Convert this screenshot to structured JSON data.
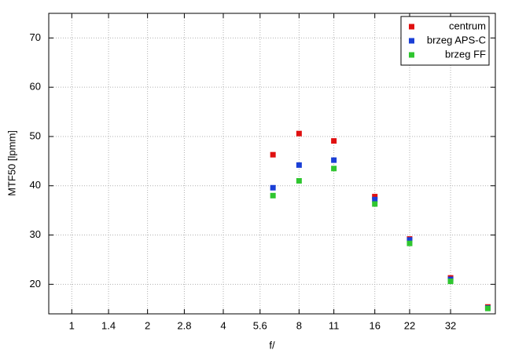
{
  "chart_data": {
    "type": "scatter",
    "xlabel": "f/",
    "ylabel": "MTF50 [lpmm]",
    "xscale": "log",
    "grid": true,
    "legend": "upper right",
    "xlim": [
      0.81,
      48.2
    ],
    "xticks": [
      1,
      1.4,
      2,
      2.8,
      4,
      5.6,
      8,
      11,
      16,
      22,
      32
    ],
    "ylim": [
      14,
      75
    ],
    "yticks": [
      20,
      30,
      40,
      50,
      60,
      70
    ],
    "x": [
      6.3,
      8,
      11,
      16,
      22,
      32,
      45
    ],
    "series": [
      {
        "name": "centrum",
        "color": "#e01010",
        "values": [
          46.3,
          50.6,
          49.1,
          37.8,
          29.2,
          21.3,
          15.4
        ]
      },
      {
        "name": "brzeg APS-C",
        "color": "#1a3fd6",
        "values": [
          39.6,
          44.2,
          45.2,
          37.2,
          29.0,
          21.0,
          15.2
        ]
      },
      {
        "name": "brzeg FF",
        "color": "#2fc62f",
        "values": [
          38.0,
          41.0,
          43.5,
          36.3,
          28.3,
          20.6,
          15.1
        ]
      }
    ]
  }
}
